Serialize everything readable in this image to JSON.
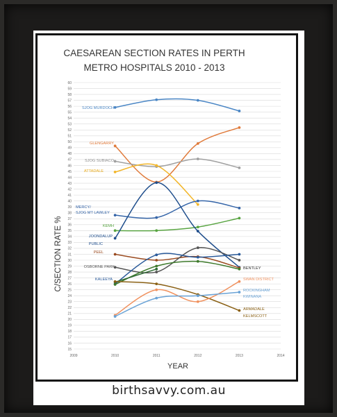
{
  "chart_data": {
    "type": "line",
    "title_line1": "CAESAREAN SECTION RATES IN PERTH",
    "title_line2": "METRO HOSPITALS 2010 - 2013",
    "xlabel": "YEAR",
    "ylabel": "C/SECTION RATE %",
    "x_ticks": [
      2009,
      2010,
      2011,
      2012,
      2013,
      2014
    ],
    "xlim": [
      2009,
      2014
    ],
    "ylim": [
      15,
      60
    ],
    "grid": true,
    "series": [
      {
        "name": "SJOG MURDOCH",
        "color": "#4a86c5",
        "x": [
          2010,
          2011,
          2012,
          2013
        ],
        "values": [
          55.8,
          57.1,
          57.0,
          55.2
        ]
      },
      {
        "name": "GLENGARRY",
        "color": "#e07a3a",
        "x": [
          2010,
          2011,
          2012,
          2013
        ],
        "values": [
          49.3,
          43.2,
          49.7,
          52.4
        ]
      },
      {
        "name": "SJOG SUBIACO",
        "color": "#a0a0a0",
        "x": [
          2010,
          2011,
          2012,
          2013
        ],
        "values": [
          46.7,
          45.8,
          47.1,
          45.6
        ]
      },
      {
        "name": "ATTADALE",
        "color": "#f2b62a",
        "x": [
          2010,
          2011,
          2012
        ],
        "values": [
          44.9,
          46.0,
          39.4
        ]
      },
      {
        "name": "MERCY/ SJOG MT LAWLEY",
        "color": "#3565a8",
        "x": [
          2010,
          2011,
          2012,
          2013
        ],
        "values": [
          37.6,
          37.2,
          40.0,
          38.8
        ]
      },
      {
        "name": "KEMH",
        "color": "#58a441",
        "x": [
          2010,
          2011,
          2012,
          2013
        ],
        "values": [
          35.0,
          35.0,
          35.6,
          37.1
        ]
      },
      {
        "name": "JOONDALUP PUBLIC",
        "color": "#1f4e8c",
        "x": [
          2010,
          2011,
          2012,
          2013
        ],
        "values": [
          33.7,
          43.1,
          34.9,
          28.8
        ]
      },
      {
        "name": "PEEL",
        "color": "#9a4a1f",
        "x": [
          2010,
          2011,
          2012,
          2013
        ],
        "values": [
          31.0,
          30.0,
          30.6,
          28.7
        ]
      },
      {
        "name": "OSBORNE PARK",
        "color": "#555555",
        "x": [
          2010,
          2011,
          2012,
          2013
        ],
        "values": [
          28.8,
          28.0,
          32.1,
          30.0
        ]
      },
      {
        "name": "KALEEYA",
        "color": "#2a5a9a",
        "x": [
          2010,
          2011,
          2012,
          2013
        ],
        "values": [
          26.0,
          30.9,
          30.5,
          31.0
        ]
      },
      {
        "name": "BENTLEY",
        "color": "#3e7a2c",
        "x": [
          2010,
          2011,
          2012,
          2013
        ],
        "values": [
          25.9,
          29.0,
          29.8,
          28.5
        ]
      },
      {
        "name": "",
        "color": "#2e6a33",
        "x": [
          2010,
          2011
        ],
        "values": [
          26.3,
          28.5
        ]
      },
      {
        "name": "ARMADALE KELMSCOTT",
        "color": "#8a6014",
        "x": [
          2010,
          2011,
          2012,
          2013
        ],
        "values": [
          26.4,
          26.0,
          24.2,
          21.5
        ]
      },
      {
        "name": "SWAN DISTRICT",
        "color": "#f0915e",
        "x": [
          2010,
          2011,
          2012,
          2013
        ],
        "values": [
          20.7,
          25.0,
          23.0,
          26.4
        ]
      },
      {
        "name": "ROCKINGHAM KWINANA",
        "color": "#6aa3d6",
        "x": [
          2010,
          2011,
          2012,
          2013
        ],
        "values": [
          20.5,
          23.6,
          24.0,
          24.6
        ]
      }
    ],
    "labels": [
      {
        "text": "SJOG MURDOCH",
        "color": "#4a86c5"
      },
      {
        "text": "GLENGARRY",
        "color": "#e07a3a"
      },
      {
        "text": "SJOG SUBIACO",
        "color": "#8e8e8e"
      },
      {
        "text": "ATTADALE",
        "color": "#e8a91a"
      },
      {
        "text": "MERCY/",
        "color": "#3565a8"
      },
      {
        "text": "SJOG MT LAWLEY",
        "color": "#3565a8"
      },
      {
        "text": "KEMH",
        "color": "#58a441"
      },
      {
        "text": "JOONDALUP",
        "color": "#1f4e8c"
      },
      {
        "text": "PUBLIC",
        "color": "#1f4e8c"
      },
      {
        "text": "PEEL",
        "color": "#9a4a1f"
      },
      {
        "text": "OSBORNE PARK",
        "color": "#555555"
      },
      {
        "text": "KALEEYA",
        "color": "#2a5a9a"
      },
      {
        "text": "BENTLEY",
        "color": "#333333"
      },
      {
        "text": "SWAN DISTRICT",
        "color": "#f0915e"
      },
      {
        "text": "ROCKINGHAM",
        "color": "#6aa3d6"
      },
      {
        "text": "KWINANA",
        "color": "#6aa3d6"
      },
      {
        "text": "ARMADALE",
        "color": "#8a6014"
      },
      {
        "text": "KELMSCOTT",
        "color": "#8a6014"
      }
    ]
  },
  "footer": "birthsavvy.com.au"
}
